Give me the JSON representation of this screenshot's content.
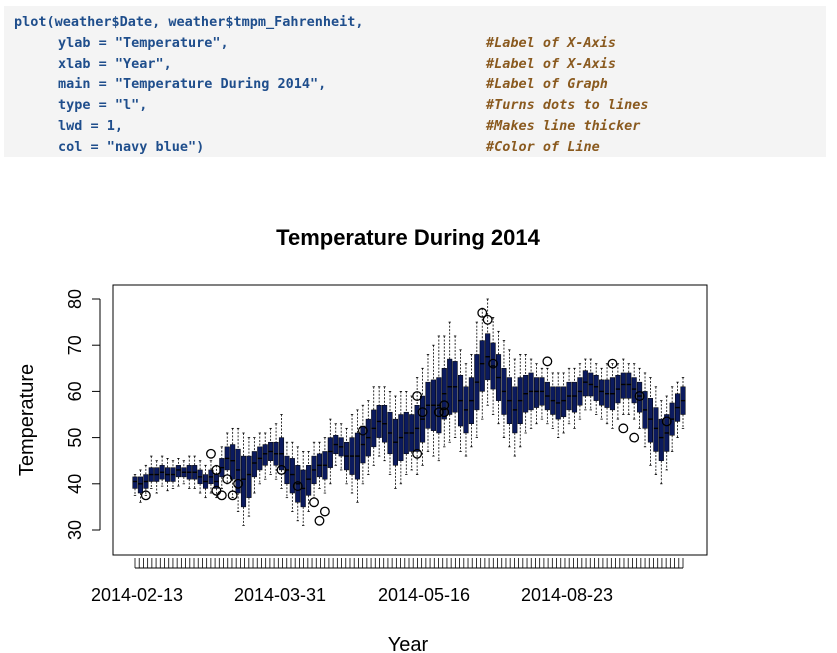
{
  "code": {
    "line0": "plot(weather$Date, weather$tmpm_Fahrenheit,",
    "line1_code": "ylab = \"Temperature\",",
    "line1_comment": "#Label of X-Axis",
    "line2_code": "xlab = \"Year\",",
    "line2_comment": "#Label of X-Axis",
    "line3_code": "main = \"Temperature During 2014\",",
    "line3_comment": "#Label of Graph",
    "line4_code": "type = \"l\",",
    "line4_comment": "#Turns dots to lines",
    "line5_code": "lwd = 1,",
    "line5_comment": "#Makes line thicker",
    "line6_code": "col = \"navy blue\")",
    "line6_comment": "#Color of Line"
  },
  "chart_data": {
    "type": "box",
    "title": "Temperature During 2014",
    "xlabel": "Year",
    "ylabel": "Temperature",
    "ylim": [
      27,
      82
    ],
    "yticks": [
      30,
      40,
      50,
      60,
      70,
      80
    ],
    "xtick_labels": [
      "2014-02-13",
      "2014-03-31",
      "2014-05-16",
      "2014-08-23"
    ],
    "series_color": "#0b1a5e",
    "grid": false,
    "legend": "none",
    "boxes": [
      [
        37.5,
        39,
        40.5,
        41.5,
        42
      ],
      [
        36,
        38,
        40,
        41.5,
        43
      ],
      [
        37.5,
        39,
        40.5,
        42,
        44
      ],
      [
        39,
        40.5,
        42,
        43.5,
        46
      ],
      [
        38,
        40.5,
        42,
        43.5,
        45
      ],
      [
        39.5,
        41,
        42.5,
        44,
        46
      ],
      [
        38.5,
        40.5,
        42,
        43.5,
        45.5
      ],
      [
        39,
        40.5,
        42,
        43.5,
        45
      ],
      [
        39.5,
        41.5,
        43,
        44,
        45.5
      ],
      [
        40,
        41.5,
        42.5,
        43.5,
        45
      ],
      [
        39,
        41,
        42.5,
        44,
        46
      ],
      [
        39,
        41,
        42.5,
        44,
        46
      ],
      [
        38,
        40,
        41.5,
        43,
        45
      ],
      [
        37,
        39,
        40.5,
        42,
        44
      ],
      [
        38,
        40,
        41.5,
        43,
        45
      ],
      [
        37,
        39,
        40.5,
        42,
        44
      ],
      [
        39,
        41.5,
        43.5,
        45.5,
        48
      ],
      [
        40,
        43,
        45.5,
        48,
        51
      ],
      [
        37,
        41,
        45,
        48.5,
        52
      ],
      [
        34,
        38,
        43,
        47.5,
        52
      ],
      [
        31,
        35,
        41,
        46,
        51
      ],
      [
        33,
        37,
        42,
        46,
        50
      ],
      [
        38,
        41.5,
        44.5,
        47,
        50
      ],
      [
        40,
        43,
        45.5,
        48,
        51
      ],
      [
        41,
        44,
        46.5,
        48.5,
        51
      ],
      [
        42,
        45,
        47,
        49,
        52
      ],
      [
        41,
        44,
        46.5,
        49,
        53
      ],
      [
        39,
        43,
        46.5,
        50,
        55
      ],
      [
        37,
        40,
        43,
        46,
        49
      ],
      [
        34,
        38,
        42,
        45.5,
        49
      ],
      [
        32,
        36,
        40,
        44,
        48
      ],
      [
        31,
        35,
        39,
        43,
        47
      ],
      [
        34,
        37.5,
        41,
        44,
        47
      ],
      [
        37,
        40,
        43,
        46,
        49
      ],
      [
        39,
        41.5,
        44,
        46.5,
        49
      ],
      [
        38,
        41,
        44,
        47,
        50
      ],
      [
        40,
        43.5,
        47,
        50,
        54
      ],
      [
        44,
        46.5,
        48.5,
        50.5,
        53
      ],
      [
        43,
        46,
        48,
        50,
        53
      ],
      [
        40,
        43,
        46,
        49,
        52
      ],
      [
        38,
        42,
        46,
        50,
        55
      ],
      [
        36,
        41,
        46,
        51,
        56
      ],
      [
        40,
        44.5,
        48.5,
        52.5,
        57
      ],
      [
        42,
        46,
        50,
        54,
        58
      ],
      [
        44,
        48,
        52,
        56,
        61
      ],
      [
        46,
        50,
        53.5,
        57,
        61
      ],
      [
        45,
        49,
        53,
        57,
        61
      ],
      [
        42,
        46.5,
        51,
        55.5,
        60
      ],
      [
        39,
        44,
        49,
        54,
        59
      ],
      [
        40,
        45,
        50,
        55,
        60
      ],
      [
        42,
        46.5,
        51,
        55.5,
        60
      ],
      [
        43,
        47,
        51,
        55,
        59
      ],
      [
        42,
        47,
        52,
        57,
        63
      ],
      [
        44,
        49,
        54,
        59,
        65
      ],
      [
        47,
        52,
        57,
        62,
        68
      ],
      [
        46,
        51.5,
        57,
        62.5,
        70
      ],
      [
        45,
        51,
        57,
        63,
        72
      ],
      [
        48,
        54,
        59.5,
        65,
        72
      ],
      [
        49,
        55,
        61,
        67,
        75
      ],
      [
        50,
        55.5,
        61,
        66.5,
        72
      ],
      [
        47,
        52.5,
        58,
        63.5,
        69
      ],
      [
        46,
        51,
        56,
        61,
        66
      ],
      [
        48,
        53,
        58,
        63,
        68
      ],
      [
        50,
        56,
        62,
        68,
        75
      ],
      [
        54,
        60,
        66,
        71,
        78
      ],
      [
        57,
        62.5,
        67.5,
        72.5,
        80
      ],
      [
        55,
        60.5,
        65.5,
        70.5,
        76
      ],
      [
        53,
        58,
        63,
        68,
        73
      ],
      [
        50,
        55,
        60,
        65,
        71
      ],
      [
        48,
        53,
        58,
        63,
        69
      ],
      [
        46,
        51,
        56,
        61,
        67
      ],
      [
        48,
        53,
        58,
        63,
        68
      ],
      [
        51,
        55.5,
        59.5,
        63.5,
        68
      ],
      [
        52,
        56,
        60,
        64,
        67
      ],
      [
        53,
        56.5,
        60,
        63,
        66
      ],
      [
        54,
        57,
        60,
        63,
        65
      ],
      [
        53,
        56,
        59,
        62,
        65
      ],
      [
        52,
        55,
        58,
        61,
        64
      ],
      [
        50,
        54,
        57.5,
        61,
        64
      ],
      [
        51,
        54.5,
        58,
        61,
        64
      ],
      [
        53,
        56,
        59,
        62,
        65
      ],
      [
        52,
        55.5,
        59,
        62,
        65
      ],
      [
        54,
        57,
        60,
        63,
        66
      ],
      [
        56,
        59,
        62,
        64.5,
        67
      ],
      [
        56,
        59,
        61.5,
        64,
        67
      ],
      [
        55,
        58,
        61,
        63.5,
        66
      ],
      [
        54,
        57,
        60,
        62.5,
        65
      ],
      [
        53,
        56.5,
        59.5,
        62.5,
        66
      ],
      [
        52,
        56,
        59.5,
        63,
        66
      ],
      [
        54,
        57.5,
        60.5,
        63.5,
        66
      ],
      [
        55,
        58.5,
        61.5,
        64,
        67
      ],
      [
        55,
        58.5,
        61.5,
        64,
        66
      ],
      [
        54,
        57.5,
        60.5,
        63,
        66
      ],
      [
        52,
        55.5,
        59,
        62,
        65
      ],
      [
        48,
        52,
        56,
        60,
        64
      ],
      [
        44,
        49,
        54,
        58.5,
        63
      ],
      [
        42,
        47,
        52,
        56.5,
        61
      ],
      [
        40,
        45,
        50,
        54,
        58
      ],
      [
        43,
        47,
        51,
        55,
        59
      ],
      [
        47,
        50.5,
        54,
        57.5,
        61
      ],
      [
        50,
        53.5,
        56.5,
        59.5,
        62
      ],
      [
        52,
        55,
        58,
        61,
        63
      ]
    ],
    "outliers": [
      {
        "i": 2,
        "v": 37.5
      },
      {
        "i": 14,
        "v": 46.5
      },
      {
        "i": 15,
        "v": 43
      },
      {
        "i": 15,
        "v": 38.5
      },
      {
        "i": 16,
        "v": 37.5
      },
      {
        "i": 17,
        "v": 41
      },
      {
        "i": 18,
        "v": 37.5
      },
      {
        "i": 19,
        "v": 40
      },
      {
        "i": 27,
        "v": 43
      },
      {
        "i": 30,
        "v": 39.5
      },
      {
        "i": 33,
        "v": 36
      },
      {
        "i": 34,
        "v": 32
      },
      {
        "i": 35,
        "v": 34
      },
      {
        "i": 42,
        "v": 51.5
      },
      {
        "i": 52,
        "v": 59
      },
      {
        "i": 53,
        "v": 55.5
      },
      {
        "i": 52,
        "v": 46.5
      },
      {
        "i": 56,
        "v": 55.5
      },
      {
        "i": 57,
        "v": 57
      },
      {
        "i": 57,
        "v": 55.5
      },
      {
        "i": 64,
        "v": 77
      },
      {
        "i": 65,
        "v": 75.5
      },
      {
        "i": 66,
        "v": 66
      },
      {
        "i": 76,
        "v": 66.5
      },
      {
        "i": 88,
        "v": 66
      },
      {
        "i": 90,
        "v": 52
      },
      {
        "i": 92,
        "v": 50
      },
      {
        "i": 93,
        "v": 59
      },
      {
        "i": 98,
        "v": 53.5
      }
    ]
  }
}
